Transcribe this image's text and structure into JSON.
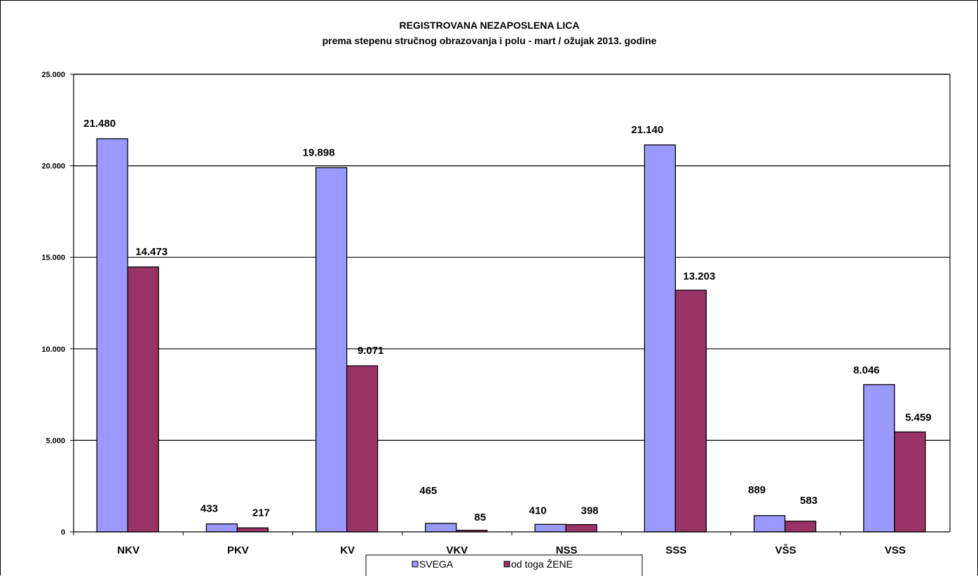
{
  "chart_data": {
    "type": "bar",
    "title": "REGISTROVANA NEZAPOSLENA LICA",
    "subtitle": "prema stepenu stručnog obrazovanja i polu - mart / ožujak  2013. godine",
    "categories": [
      "NKV",
      "PKV",
      "KV",
      "VKV",
      "NSS",
      "SSS",
      "VŠS",
      "VSS"
    ],
    "series": [
      {
        "name": "SVEGA",
        "color": "#9999ff",
        "values": [
          21480,
          433,
          19898,
          465,
          410,
          21140,
          889,
          8046
        ],
        "labels": [
          "21.480",
          "433",
          "19.898",
          "465",
          "410",
          "21.140",
          "889",
          "8.046"
        ]
      },
      {
        "name": "od toga ŽENE",
        "color": "#993366",
        "values": [
          14473,
          217,
          9071,
          85,
          398,
          13203,
          583,
          5459
        ],
        "labels": [
          "14.473",
          "217",
          "9.071",
          "85",
          "398",
          "13.203",
          "583",
          "5.459"
        ]
      }
    ],
    "ylim": [
      0,
      25000
    ],
    "yticks": [
      0,
      5000,
      10000,
      15000,
      20000,
      25000
    ],
    "ytick_labels": [
      "0",
      "5.000",
      "10.000",
      "15.000",
      "20.000",
      "25.000"
    ],
    "grid": true,
    "legend_position": "bottom"
  }
}
